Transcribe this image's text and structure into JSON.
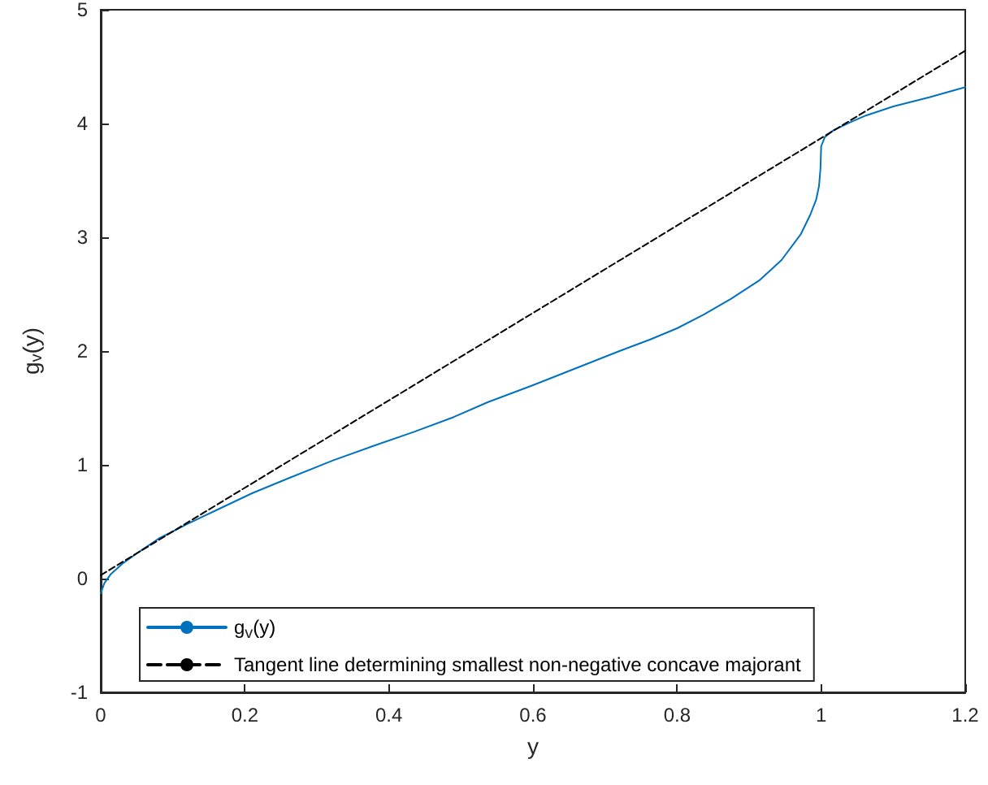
{
  "chart_data": {
    "type": "line",
    "xlabel": "y",
    "ylabel": "g$_{v}$(y)",
    "xlim": [
      0,
      1.2
    ],
    "xticks": [
      0,
      0.2,
      0.4,
      0.6,
      0.8,
      1,
      1.2
    ],
    "ylim": [
      -1,
      5
    ],
    "yticks": [
      -1,
      0,
      1,
      2,
      3,
      4,
      5
    ],
    "grid": false,
    "legend": "bottom left",
    "marker": "none",
    "series": [
      {
        "name": "g$_{v}$(y)",
        "color": "#0072bd",
        "line_style": "solid",
        "x": [
          0,
          0.005,
          0.014,
          0.03,
          0.052,
          0.08,
          0.12,
          0.16,
          0.21,
          0.26,
          0.311,
          0.323,
          0.38,
          0.435,
          0.49,
          0.537,
          0.6,
          0.66,
          0.72,
          0.762,
          0.8,
          0.837,
          0.875,
          0.914,
          0.945,
          0.972,
          0.985,
          0.993,
          0.997,
          0.999,
          1.0,
          1.005,
          1.017,
          1.04,
          1.062,
          1.1,
          1.15,
          1.2
        ],
        "values": [
          -0.13,
          -0.04,
          0.04,
          0.13,
          0.23,
          0.35,
          0.48,
          0.6,
          0.75,
          0.88,
          1.01,
          1.04,
          1.17,
          1.29,
          1.42,
          1.55,
          1.7,
          1.85,
          2.0,
          2.1,
          2.2,
          2.32,
          2.46,
          2.62,
          2.8,
          3.03,
          3.2,
          3.33,
          3.45,
          3.6,
          3.8,
          3.88,
          3.94,
          4.01,
          4.07,
          4.15,
          4.23,
          4.32
        ]
      },
      {
        "name": "Tangent line determining smallest non-negative concave majorant",
        "color": "#000000",
        "line_style": "dashed",
        "x": [
          0,
          1.2
        ],
        "values": [
          0.03,
          4.64
        ]
      }
    ]
  }
}
